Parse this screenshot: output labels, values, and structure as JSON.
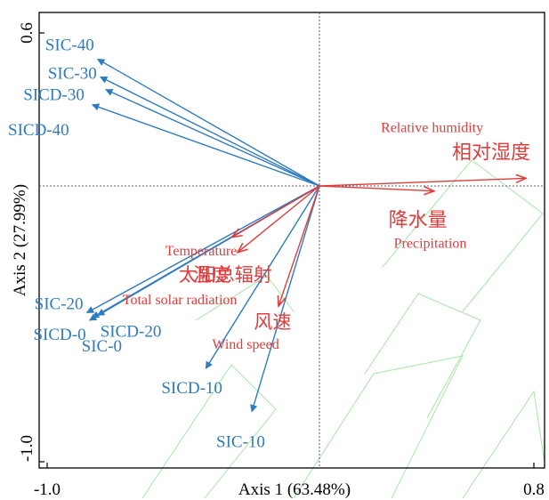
{
  "chart_data": {
    "type": "biplot",
    "xlabel": "Axis 1 (63.48%)",
    "ylabel": "Axis 2 (27.99%)",
    "xlim": [
      -1.0,
      0.8
    ],
    "ylim": [
      -1.05,
      0.65
    ],
    "xticks": [
      "-1.0",
      "0.8"
    ],
    "yticks": [
      "0.6",
      "-1.0"
    ],
    "colors": {
      "response": "#2f7bbf",
      "explanatory": "#e03c3c",
      "watermark": "#8fe08f",
      "frame": "#000000"
    },
    "response_vectors": [
      {
        "label": "SIC-40",
        "x": -0.82,
        "y": 0.5
      },
      {
        "label": "SIC-30",
        "x": -0.81,
        "y": 0.43
      },
      {
        "label": "SICD-30",
        "x": -0.79,
        "y": 0.38
      },
      {
        "label": "SICD-40",
        "x": -0.84,
        "y": 0.32
      },
      {
        "label": "SIC-20",
        "x": -0.86,
        "y": -0.5
      },
      {
        "label": "SICD-0",
        "x": -0.85,
        "y": -0.53
      },
      {
        "label": "SICD-20",
        "x": -0.82,
        "y": -0.51
      },
      {
        "label": "SIC-0",
        "x": -0.84,
        "y": -0.52
      },
      {
        "label": "SICD-10",
        "x": -0.42,
        "y": -0.72
      },
      {
        "label": "SIC-10",
        "x": -0.25,
        "y": -0.89
      }
    ],
    "explanatory_vectors": [
      {
        "label": "Relative humidity",
        "label_zh": "相对湿度",
        "x": 0.76,
        "y": 0.03
      },
      {
        "label": "Precipitation",
        "label_zh": "降水量",
        "x": 0.42,
        "y": -0.02
      },
      {
        "label": "Temperature",
        "label_zh": "温度",
        "x": -0.32,
        "y": -0.2
      },
      {
        "label": "Total solar radiation",
        "label_zh": "太阳总辐射",
        "x": -0.3,
        "y": -0.26
      },
      {
        "label": "Wind speed",
        "label_zh": "风速",
        "x": -0.15,
        "y": -0.47
      }
    ]
  }
}
